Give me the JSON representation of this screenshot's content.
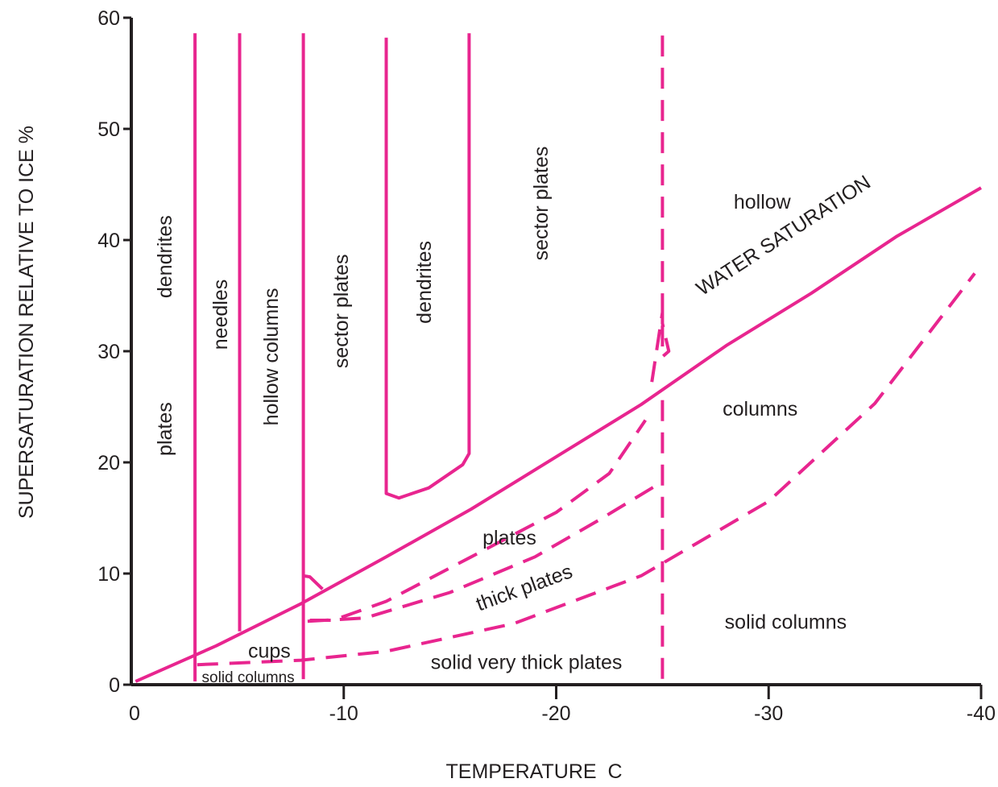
{
  "chart_data": {
    "type": "line",
    "xlabel": "TEMPERATURE  C",
    "ylabel": "SUPERSATURATION RELATIVE TO ICE %",
    "xlim": [
      0,
      -40
    ],
    "ylim": [
      0,
      60
    ],
    "x_ticks": [
      "0",
      "-10",
      "-20",
      "-30",
      "-40"
    ],
    "y_ticks": [
      "0",
      "10",
      "20",
      "30",
      "40",
      "50",
      "60"
    ],
    "line_color": "#e8258f",
    "axis_color": "#231f20",
    "grid": false,
    "series": [
      {
        "name": "WATER SATURATION",
        "style": "solid",
        "x": [
          -0.2,
          -4,
          -8,
          -12,
          -16,
          -20,
          -24,
          -28,
          -32,
          -36,
          -40
        ],
        "y": [
          0.3,
          3.5,
          7.3,
          11.5,
          15.8,
          20.5,
          25.2,
          30.5,
          35.2,
          40.3,
          44.7
        ]
      }
    ],
    "boundaries": [
      {
        "style": "solid",
        "x": [
          -3,
          -3
        ],
        "y": [
          0.3,
          58.6
        ]
      },
      {
        "style": "solid",
        "x": [
          -5.1,
          -5.1
        ],
        "y": [
          4.8,
          58.6
        ]
      },
      {
        "style": "solid",
        "x": [
          -8.1,
          -8.1
        ],
        "y": [
          0.5,
          58.6
        ]
      },
      {
        "style": "solid",
        "x": [
          -12,
          -12,
          -12.6,
          -14,
          -15.6,
          -15.9,
          -15.9
        ],
        "y": [
          58.2,
          17.2,
          16.8,
          17.7,
          19.8,
          20.8,
          58.6
        ]
      },
      {
        "style": "solid",
        "x": [
          -8.1,
          -8.4,
          -9
        ],
        "y": [
          9.8,
          9.7,
          8.6
        ]
      },
      {
        "style": "dashed",
        "x": [
          -25,
          -25,
          -25.3,
          -25,
          -25,
          -24.5,
          -24.3
        ],
        "y": [
          58.4,
          29.5,
          30.0,
          32.5,
          33.5,
          27.2,
          27.0
        ]
      },
      {
        "style": "dashed",
        "x": [
          -25,
          -25
        ],
        "y": [
          25.6,
          0
        ]
      },
      {
        "style": "dashed",
        "x": [
          -8.4,
          -9.5,
          -12,
          -16,
          -20,
          -22.5,
          -24.2
        ],
        "y": [
          5.8,
          5.8,
          7.5,
          11.5,
          15.5,
          19.0,
          23.8
        ]
      },
      {
        "style": "dashed",
        "x": [
          -8.3,
          -11,
          -15,
          -19,
          -22,
          -24.6
        ],
        "y": [
          5.7,
          6.0,
          8.3,
          11.5,
          14.8,
          17.8
        ]
      },
      {
        "style": "dashed",
        "x": [
          -3.1,
          -8,
          -12,
          -18,
          -24,
          -30,
          -35,
          -39.7
        ],
        "y": [
          1.8,
          2.2,
          3.0,
          5.5,
          9.8,
          16.5,
          25.3,
          37.0
        ]
      }
    ],
    "annotations": [
      {
        "text": "dendrites",
        "x": -1.6,
        "y": 38.5,
        "rotate": -90
      },
      {
        "text": "plates",
        "x": -1.6,
        "y": 23.0,
        "rotate": -90
      },
      {
        "text": "needles",
        "x": -4.2,
        "y": 33.3,
        "rotate": -90
      },
      {
        "text": "hollow columns",
        "x": -6.6,
        "y": 29.5,
        "rotate": -90
      },
      {
        "text": "sector plates",
        "x": -9.9,
        "y": 33.6,
        "rotate": -90
      },
      {
        "text": "dendrites",
        "x": -13.8,
        "y": 36.2,
        "rotate": -90
      },
      {
        "text": "sector plates",
        "x": -19.3,
        "y": 43.3,
        "rotate": -90
      },
      {
        "text": "hollow",
        "x": -29.7,
        "y": 43.4,
        "rotate": 0
      },
      {
        "text": "WATER SATURATION",
        "x": -30.7,
        "y": 40.4,
        "rotate": -33
      },
      {
        "text": "columns",
        "x": -29.6,
        "y": 24.8,
        "rotate": 0
      },
      {
        "text": "plates",
        "x": -17.8,
        "y": 13.2,
        "rotate": 0
      },
      {
        "text": "thick plates",
        "x": -18.5,
        "y": 8.7,
        "rotate": -20
      },
      {
        "text": "solid columns",
        "x": -30.8,
        "y": 5.6,
        "rotate": 0
      },
      {
        "text": "cups",
        "x": -6.5,
        "y": 3.0,
        "rotate": 0
      },
      {
        "text": "solid columns",
        "x": -5.5,
        "y": 0.6,
        "rotate": 0,
        "small": true
      },
      {
        "text": "solid very thick plates",
        "x": -18.6,
        "y": 2.0,
        "rotate": 0
      }
    ]
  }
}
